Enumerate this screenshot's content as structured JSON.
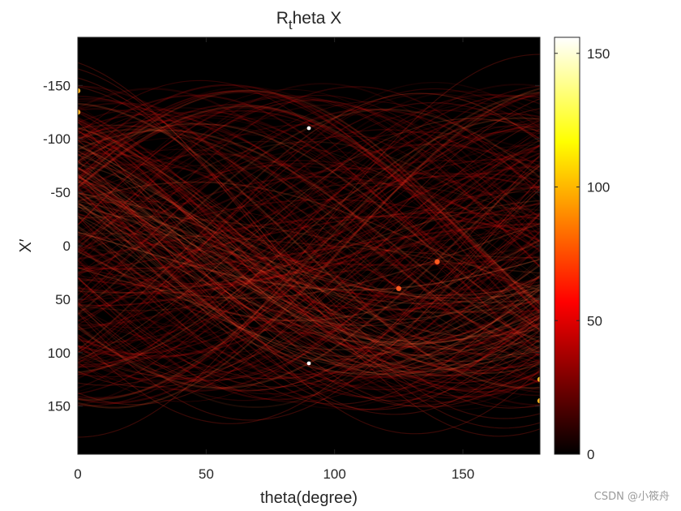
{
  "chart_data": {
    "type": "heatmap",
    "title": {
      "main": "R",
      "sub": "t",
      "rest": "heta X"
    },
    "xlabel": "theta(degree)",
    "ylabel": "X′",
    "xlim": [
      0,
      180
    ],
    "ylim": [
      -195,
      195
    ],
    "y_reversed": true,
    "xticks": [
      0,
      50,
      100,
      150
    ],
    "yticks": [
      -150,
      -100,
      -50,
      0,
      50,
      100,
      150
    ],
    "colorbar": {
      "min": 0,
      "max": 156,
      "ticks": [
        0,
        50,
        100,
        150
      ],
      "colormap": "hot"
    },
    "grid": false,
    "notable_points": [
      {
        "theta": 90,
        "x": -110,
        "value": 156
      },
      {
        "theta": 90,
        "x": 110,
        "value": 156
      },
      {
        "theta": 0,
        "x": -145,
        "value": 95
      },
      {
        "theta": 0,
        "x": -125,
        "value": 90
      },
      {
        "theta": 180,
        "x": 145,
        "value": 95
      },
      {
        "theta": 180,
        "x": 125,
        "value": 90
      },
      {
        "theta": 140,
        "x": 15,
        "value": 80
      },
      {
        "theta": 125,
        "x": 40,
        "value": 75
      }
    ]
  },
  "watermark": "CSDN @小筱舟"
}
